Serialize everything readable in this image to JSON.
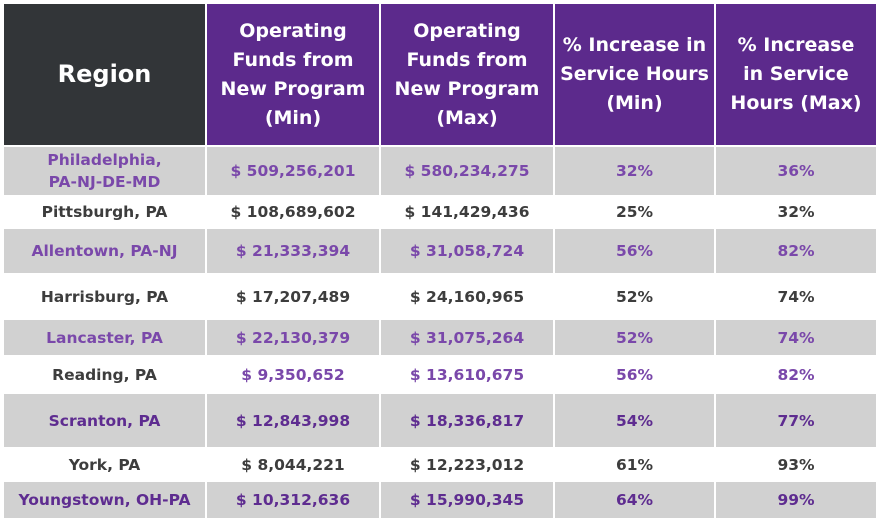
{
  "colors": {
    "header_region": "#323538",
    "header_purple": "#5c2a8c",
    "row_shade": "#d1d1d1",
    "text_dark": "#3d3d3d",
    "text_purple": "#7a48aa",
    "text_deep_purple": "#5e2c90"
  },
  "headers": [
    "Region",
    "Operating\nFunds from\nNew Program\n(Min)",
    "Operating\nFunds from\nNew Program\n(Max)",
    "% Increase in\nService Hours\n(Min)",
    "% Increase\nin Service\nHours (Max)"
  ],
  "rows": [
    {
      "cells": [
        "Philadelphia,\nPA-NJ-DE-MD",
        "$ 509,256,201",
        "$ 580,234,275",
        "32%",
        "36%"
      ],
      "shade": true,
      "region_color": "#7a48aa",
      "value_color": "#7a48aa",
      "height": 48
    },
    {
      "cells": [
        "Pittsburgh, PA",
        "$ 108,689,602",
        "$ 141,429,436",
        "25%",
        "32%"
      ],
      "shade": false,
      "region_color": "#3d3d3d",
      "value_color": "#3d3d3d",
      "height": 30
    },
    {
      "cells": [
        "Allentown, PA-NJ",
        "$ 21,333,394",
        "$ 31,058,724",
        "56%",
        "82%"
      ],
      "shade": true,
      "region_color": "#7a48aa",
      "value_color": "#7a48aa",
      "height": 44
    },
    {
      "cells": [
        "Harrisburg, PA",
        "$ 17,207,489",
        "$ 24,160,965",
        "52%",
        "74%"
      ],
      "shade": false,
      "region_color": "#3d3d3d",
      "value_color": "#3d3d3d",
      "height": 43
    },
    {
      "cells": [
        "Lancaster, PA",
        "$ 22,130,379",
        "$ 31,075,264",
        "52%",
        "74%"
      ],
      "shade": true,
      "region_color": "#7a48aa",
      "value_color": "#7a48aa",
      "height": 35
    },
    {
      "cells": [
        "Reading, PA",
        "$ 9,350,652",
        "$ 13,610,675",
        "56%",
        "82%"
      ],
      "shade": false,
      "region_color": "#3d3d3d",
      "value_color": "#7a48aa",
      "height": 35
    },
    {
      "cells": [
        "Scranton, PA",
        "$ 12,843,998",
        "$ 18,336,817",
        "54%",
        "77%"
      ],
      "shade": true,
      "region_color": "#5e2c90",
      "value_color": "#5e2c90",
      "height": 53
    },
    {
      "cells": [
        "York, PA",
        "$ 8,044,221",
        "$ 12,223,012",
        "61%",
        "93%"
      ],
      "shade": false,
      "region_color": "#3d3d3d",
      "value_color": "#3d3d3d",
      "height": 31
    },
    {
      "cells": [
        "Youngstown, OH-PA",
        "$ 10,312,636",
        "$ 15,990,345",
        "64%",
        "99%"
      ],
      "shade": true,
      "region_color": "#5e2c90",
      "value_color": "#5e2c90",
      "height": 36
    }
  ]
}
